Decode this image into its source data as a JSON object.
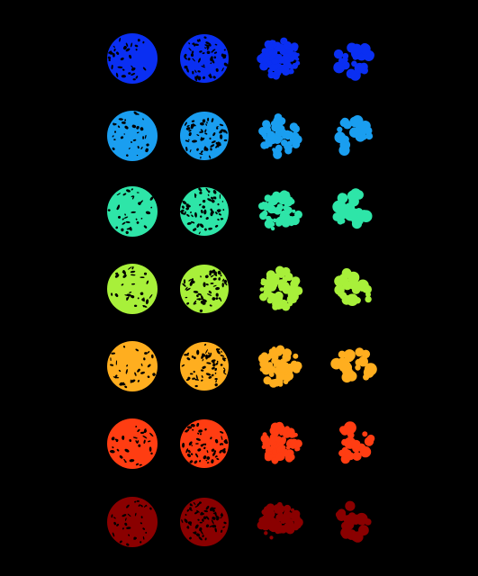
{
  "image": {
    "background": "#000000",
    "grid": {
      "rows": 7,
      "columns": 4
    },
    "row_colors": [
      "#0a2ff2",
      "#1a9ef0",
      "#2ee5a8",
      "#a8f03a",
      "#ffae1f",
      "#ff3d12",
      "#8a0000"
    ],
    "column_fill_fraction": [
      0.88,
      0.78,
      0.58,
      0.4
    ],
    "column_fragmentation": [
      "fine-speckled",
      "fine-speckled",
      "clustered",
      "scattered-blobs"
    ]
  }
}
